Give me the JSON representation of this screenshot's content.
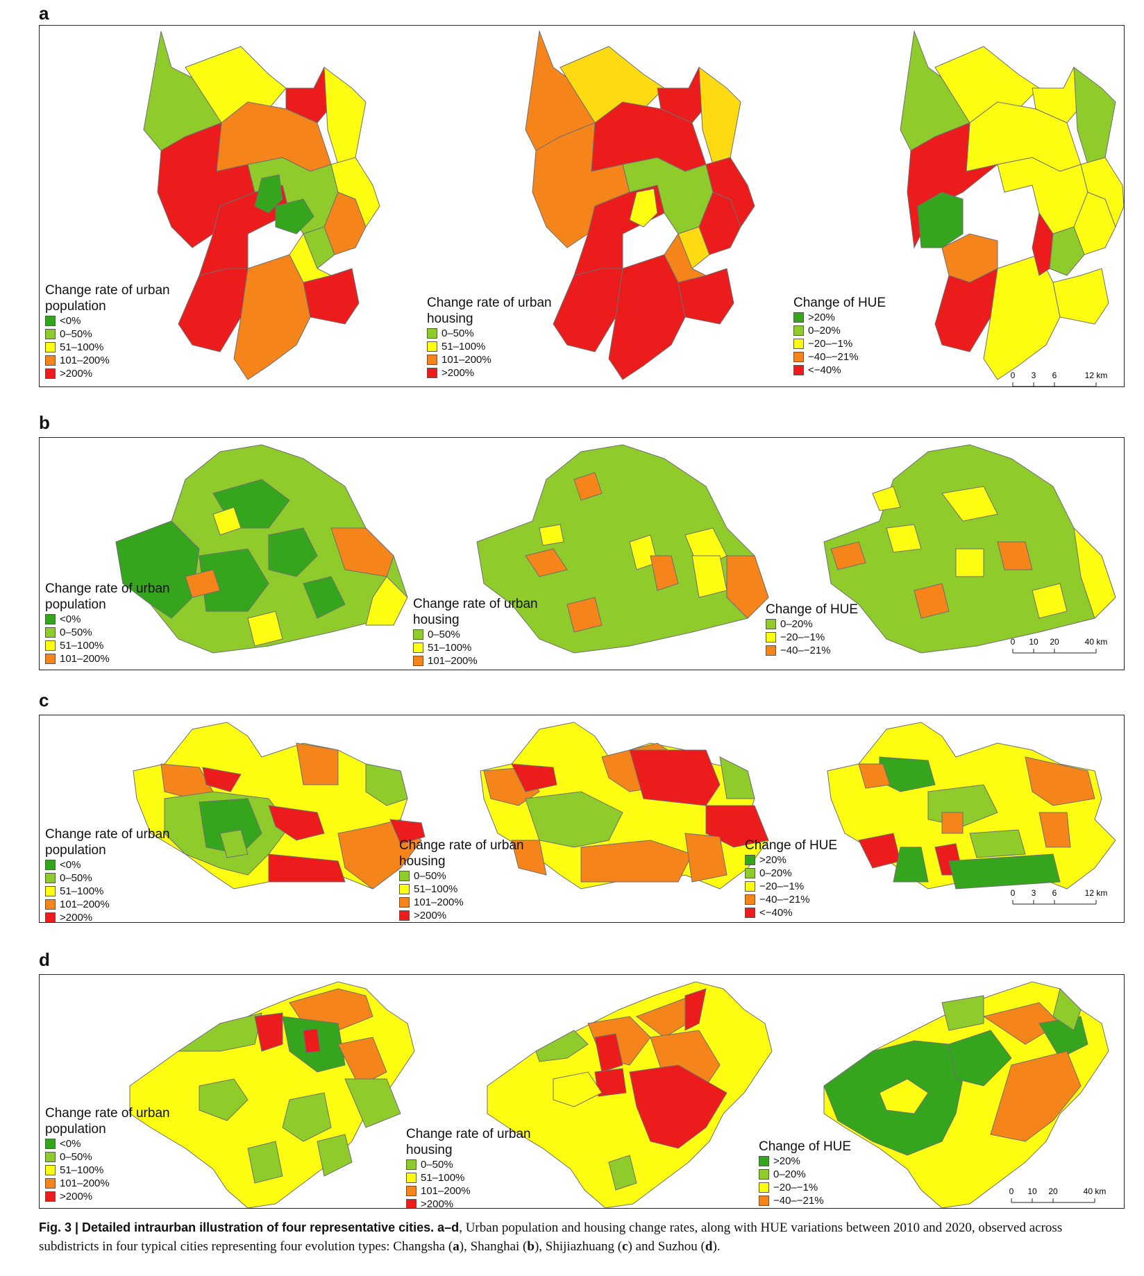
{
  "colors": {
    "dark_green": "#36a51e",
    "light_green": "#8fcb2a",
    "yellow": "#fdfd12",
    "light_orange": "#fdda12",
    "orange": "#f5841b",
    "red": "#ec1c1c",
    "boundary": "#6e6e6e"
  },
  "panels": [
    {
      "letter": "a",
      "legends": [
        {
          "title": "Change rate of urban population",
          "items": [
            {
              "label": "<0%",
              "color": "#36a51e"
            },
            {
              "label": "0–50%",
              "color": "#8fcb2a"
            },
            {
              "label": "51–100%",
              "color": "#fdfd12"
            },
            {
              "label": "101–200%",
              "color": "#f5841b"
            },
            {
              "label": ">200%",
              "color": "#ec1c1c"
            }
          ]
        },
        {
          "title": "Change rate of urban housing",
          "items": [
            {
              "label": "0–50%",
              "color": "#8fcb2a"
            },
            {
              "label": "51–100%",
              "color": "#fdfd12"
            },
            {
              "label": "101–200%",
              "color": "#f5841b"
            },
            {
              "label": ">200%",
              "color": "#ec1c1c"
            }
          ]
        },
        {
          "title": "Change of HUE",
          "items": [
            {
              "label": ">20%",
              "color": "#36a51e"
            },
            {
              "label": "0–20%",
              "color": "#8fcb2a"
            },
            {
              "label": "−20–−1%",
              "color": "#fdfd12"
            },
            {
              "label": "−40–−21%",
              "color": "#f5841b"
            },
            {
              "label": "<−40%",
              "color": "#ec1c1c"
            }
          ]
        }
      ],
      "scale": {
        "ticks": [
          "0",
          "3",
          "6"
        ],
        "end": "12 km"
      }
    },
    {
      "letter": "b",
      "legends": [
        {
          "title": "Change rate of urban population",
          "items": [
            {
              "label": "<0%",
              "color": "#36a51e"
            },
            {
              "label": "0–50%",
              "color": "#8fcb2a"
            },
            {
              "label": "51–100%",
              "color": "#fdfd12"
            },
            {
              "label": "101–200%",
              "color": "#f5841b"
            }
          ]
        },
        {
          "title": "Change rate of urban housing",
          "items": [
            {
              "label": "0–50%",
              "color": "#8fcb2a"
            },
            {
              "label": "51–100%",
              "color": "#fdfd12"
            },
            {
              "label": "101–200%",
              "color": "#f5841b"
            }
          ]
        },
        {
          "title": "Change of HUE",
          "items": [
            {
              "label": "0–20%",
              "color": "#8fcb2a"
            },
            {
              "label": "−20–−1%",
              "color": "#fdfd12"
            },
            {
              "label": "−40–−21%",
              "color": "#f5841b"
            }
          ]
        }
      ],
      "scale": {
        "ticks": [
          "0",
          "10",
          "20"
        ],
        "end": "40 km"
      }
    },
    {
      "letter": "c",
      "legends": [
        {
          "title": "Change rate of urban population",
          "items": [
            {
              "label": "<0%",
              "color": "#36a51e"
            },
            {
              "label": "0–50%",
              "color": "#8fcb2a"
            },
            {
              "label": "51–100%",
              "color": "#fdfd12"
            },
            {
              "label": "101–200%",
              "color": "#f5841b"
            },
            {
              "label": ">200%",
              "color": "#ec1c1c"
            }
          ]
        },
        {
          "title": "Change rate of urban housing",
          "items": [
            {
              "label": "0–50%",
              "color": "#8fcb2a"
            },
            {
              "label": "51–100%",
              "color": "#fdfd12"
            },
            {
              "label": "101–200%",
              "color": "#f5841b"
            },
            {
              "label": ">200%",
              "color": "#ec1c1c"
            }
          ]
        },
        {
          "title": "Change of HUE",
          "items": [
            {
              "label": ">20%",
              "color": "#36a51e"
            },
            {
              "label": "0–20%",
              "color": "#8fcb2a"
            },
            {
              "label": "−20–−1%",
              "color": "#fdfd12"
            },
            {
              "label": "−40–−21%",
              "color": "#f5841b"
            },
            {
              "label": "<−40%",
              "color": "#ec1c1c"
            }
          ]
        }
      ],
      "scale": {
        "ticks": [
          "0",
          "3",
          "6"
        ],
        "end": "12 km"
      }
    },
    {
      "letter": "d",
      "legends": [
        {
          "title": "Change rate of urban population",
          "items": [
            {
              "label": "<0%",
              "color": "#36a51e"
            },
            {
              "label": "0–50%",
              "color": "#8fcb2a"
            },
            {
              "label": "51–100%",
              "color": "#fdfd12"
            },
            {
              "label": "101–200%",
              "color": "#f5841b"
            },
            {
              "label": ">200%",
              "color": "#ec1c1c"
            }
          ]
        },
        {
          "title": "Change rate of urban housing",
          "items": [
            {
              "label": "0–50%",
              "color": "#8fcb2a"
            },
            {
              "label": "51–100%",
              "color": "#fdfd12"
            },
            {
              "label": "101–200%",
              "color": "#f5841b"
            },
            {
              "label": ">200%",
              "color": "#ec1c1c"
            }
          ]
        },
        {
          "title": "Change of HUE",
          "items": [
            {
              "label": ">20%",
              "color": "#36a51e"
            },
            {
              "label": "0–20%",
              "color": "#8fcb2a"
            },
            {
              "label": "−20–−1%",
              "color": "#fdfd12"
            },
            {
              "label": "−40–−21%",
              "color": "#f5841b"
            }
          ]
        }
      ],
      "scale": {
        "ticks": [
          "0",
          "10",
          "20"
        ],
        "end": "40 km"
      }
    }
  ],
  "caption": {
    "fig_label": "Fig. 3 | ",
    "bold_title": "Detailed intraurban illustration of four representative cities. a–d",
    "text_1": ", Urban population and housing change rates, along with HUE variations between 2010 and 2020, observed across subdistricts in four typical cities representing four evolution types: Changsha (",
    "a": "a",
    "text_2": "), Shanghai (",
    "b": "b",
    "text_3": "), Shijiazhuang (",
    "c": "c",
    "text_4": ") and Suzhou (",
    "d": "d",
    "text_5": ")."
  }
}
